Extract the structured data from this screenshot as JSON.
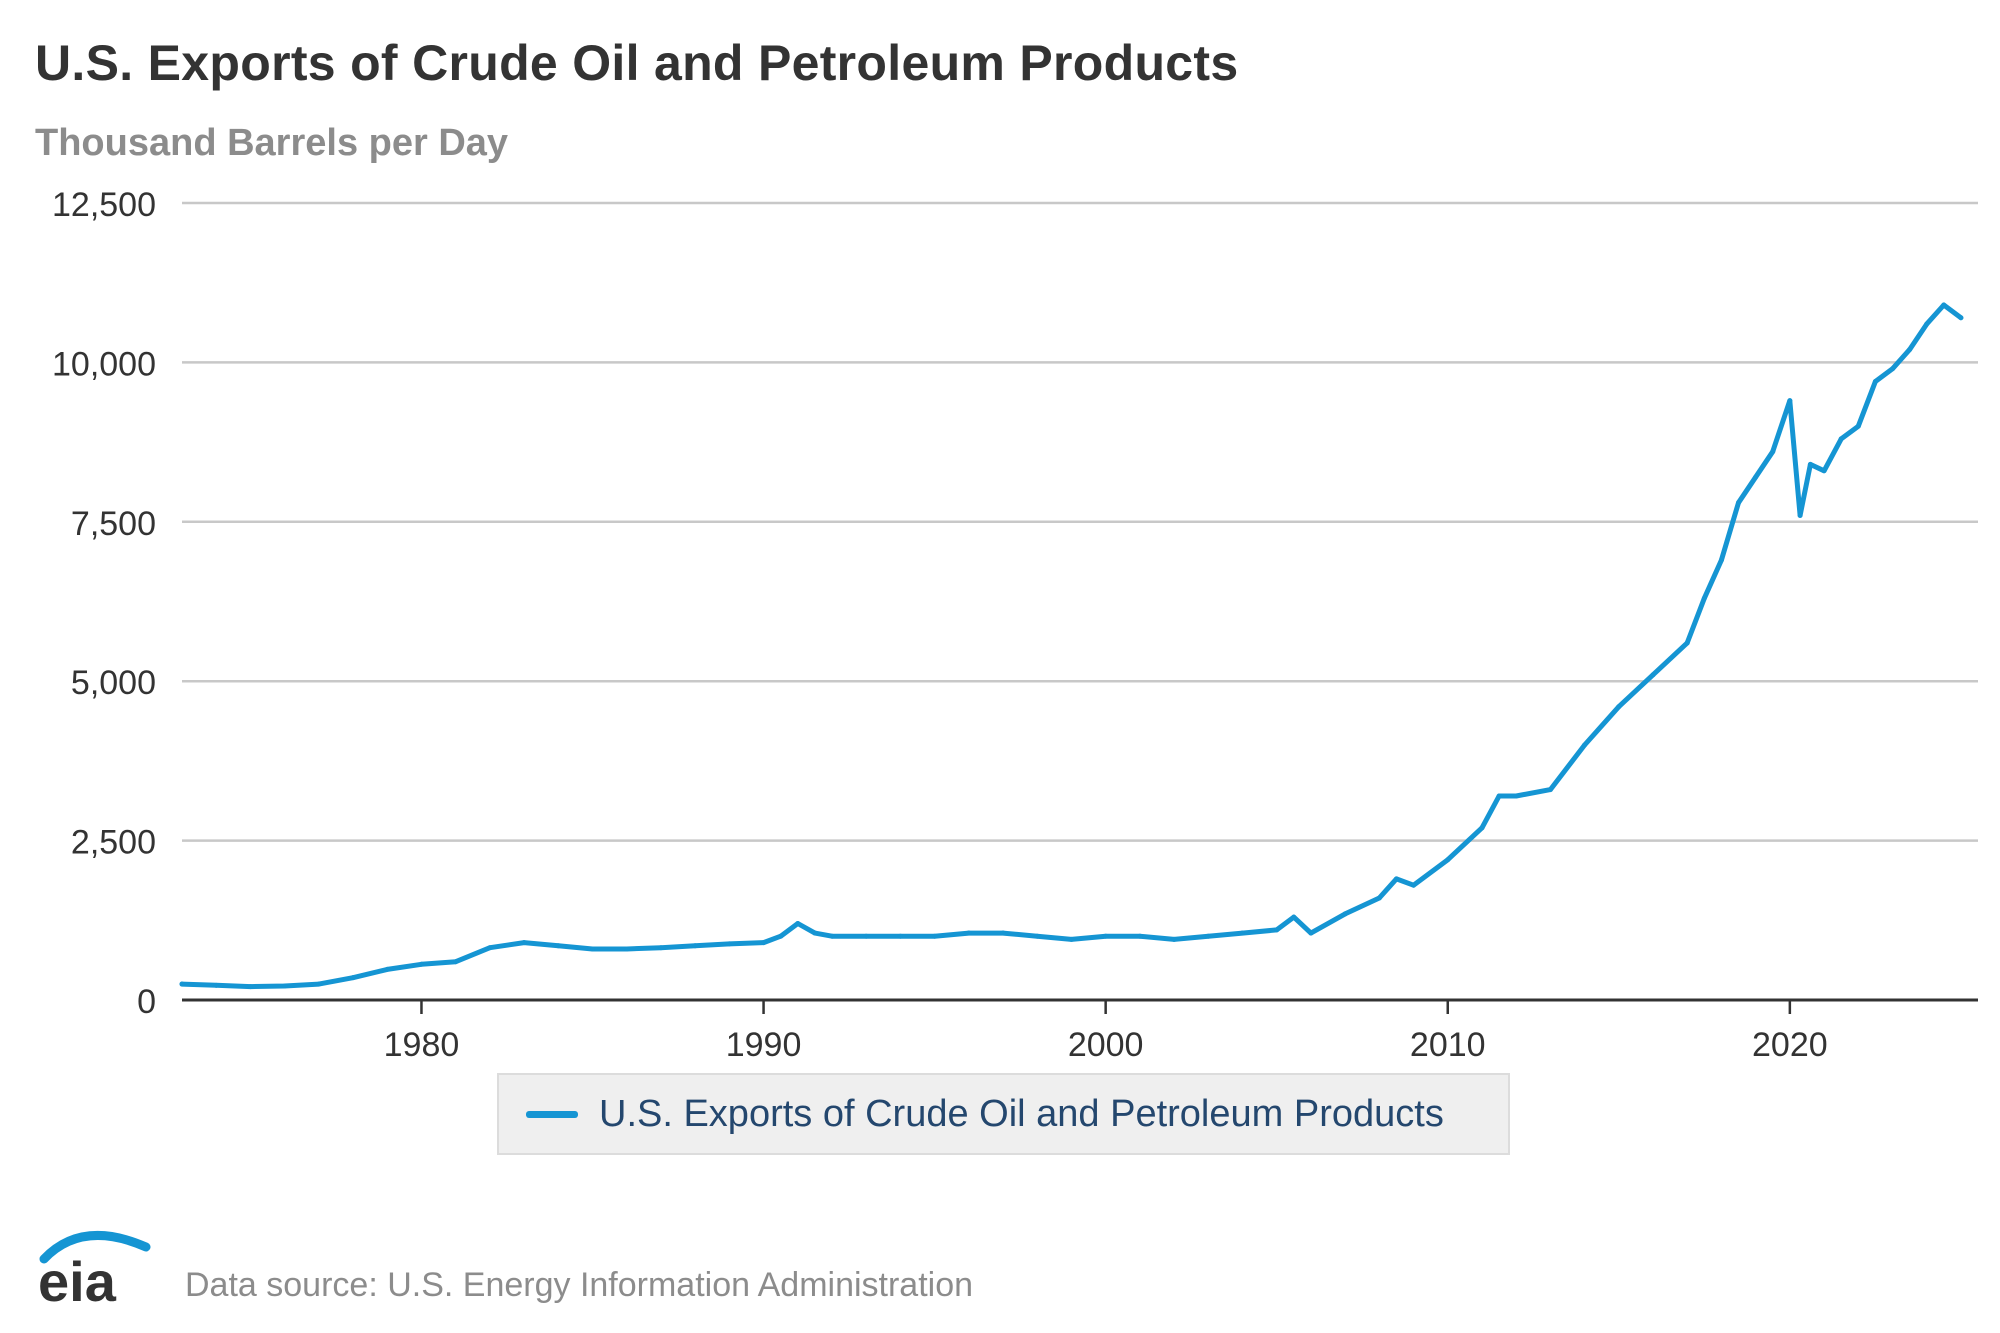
{
  "header": {
    "title": "U.S. Exports of Crude Oil and Petroleum Products",
    "subtitle": "Thousand Barrels per Day"
  },
  "legend": {
    "label": "U.S. Exports of Crude Oil and Petroleum Products"
  },
  "footer": {
    "logo_text": "eia",
    "source": "Data source: U.S. Energy Information Administration"
  },
  "colors": {
    "series": "#1595d3",
    "grid": "#c8c8c8",
    "axis": "#333333",
    "tick_text": "#333333",
    "title": "#333333",
    "subtitle": "#8c8c8c"
  },
  "chart_data": {
    "type": "line",
    "title": "U.S. Exports of Crude Oil and Petroleum Products",
    "subtitle": "Thousand Barrels per Day",
    "xlim": [
      1973,
      2025.5
    ],
    "ylim": [
      0,
      12500
    ],
    "x_ticks": [
      1980,
      1990,
      2000,
      2010,
      2020
    ],
    "y_ticks": [
      0,
      2500,
      5000,
      7500,
      10000,
      12500
    ],
    "y_tick_labels": [
      "0",
      "2,500",
      "5,000",
      "7,500",
      "10,000",
      "12,500"
    ],
    "grid": "horizontal",
    "legend_position": "bottom",
    "series": [
      {
        "name": "U.S. Exports of Crude Oil and Petroleum Products",
        "x": [
          1973.0,
          1974.0,
          1975.0,
          1976.0,
          1977.0,
          1978.0,
          1979.0,
          1980.0,
          1981.0,
          1982.0,
          1983.0,
          1984.0,
          1985.0,
          1986.0,
          1987.0,
          1988.0,
          1989.0,
          1990.0,
          1990.5,
          1991.0,
          1991.5,
          1992.0,
          1993.0,
          1994.0,
          1995.0,
          1996.0,
          1997.0,
          1998.0,
          1999.0,
          2000.0,
          2001.0,
          2002.0,
          2003.0,
          2004.0,
          2005.0,
          2005.5,
          2006.0,
          2007.0,
          2008.0,
          2008.5,
          2009.0,
          2010.0,
          2011.0,
          2011.5,
          2012.0,
          2013.0,
          2014.0,
          2015.0,
          2016.0,
          2017.0,
          2017.5,
          2018.0,
          2018.5,
          2019.0,
          2019.5,
          2020.0,
          2020.3,
          2020.6,
          2021.0,
          2021.5,
          2022.0,
          2022.5,
          2023.0,
          2023.5,
          2024.0,
          2024.5,
          2025.0
        ],
        "y": [
          250,
          230,
          210,
          220,
          250,
          350,
          480,
          560,
          600,
          820,
          900,
          850,
          800,
          800,
          820,
          850,
          880,
          900,
          1000,
          1200,
          1050,
          1000,
          1000,
          1000,
          1000,
          1050,
          1050,
          1000,
          950,
          1000,
          1000,
          950,
          1000,
          1050,
          1100,
          1300,
          1050,
          1350,
          1600,
          1900,
          1800,
          2200,
          2700,
          3200,
          3200,
          3300,
          4000,
          4600,
          5100,
          5600,
          6300,
          6900,
          7800,
          8200,
          8600,
          9400,
          7600,
          8400,
          8300,
          8800,
          9000,
          9700,
          9900,
          10200,
          10600,
          10900,
          10700
        ]
      }
    ]
  }
}
